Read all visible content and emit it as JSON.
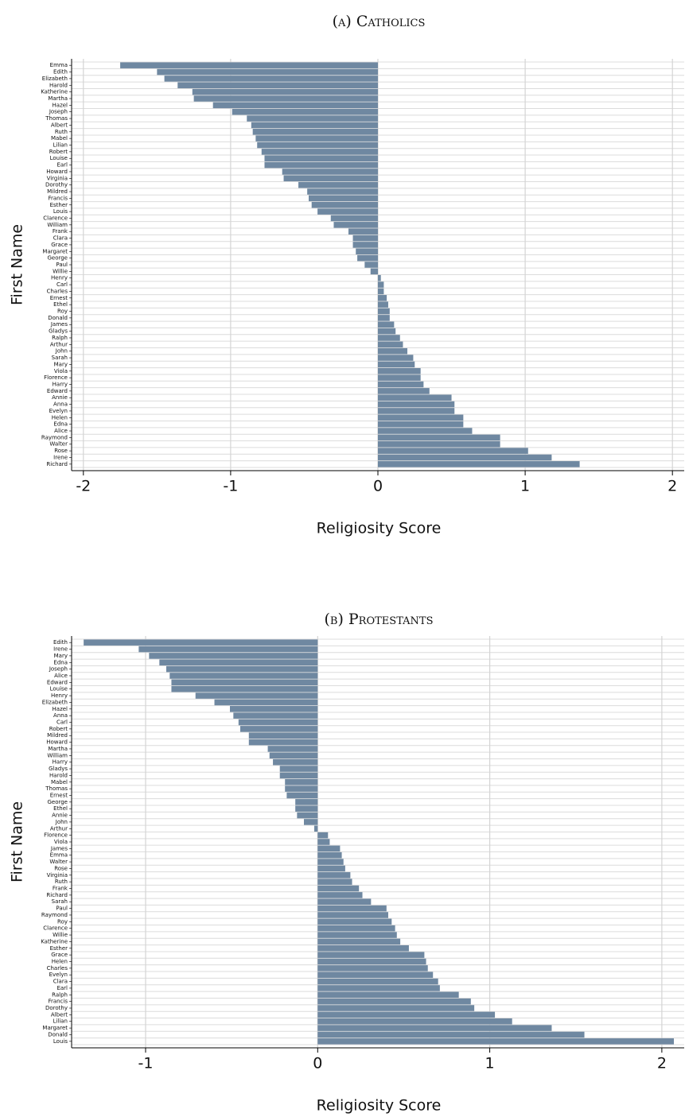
{
  "chart_data": [
    {
      "type": "bar",
      "orientation": "horizontal",
      "title": "(a) Catholics",
      "xlabel": "Religiosity Score",
      "ylabel": "First Name",
      "color": "#6f88a1",
      "grid": true,
      "xlim": [
        -2.08,
        2.08
      ],
      "xticks": [
        -2,
        -1,
        0,
        1,
        2
      ],
      "categories": [
        "Emma",
        "Edith",
        "Elizabeth",
        "Harold",
        "Katherine",
        "Martha",
        "Hazel",
        "Joseph",
        "Thomas",
        "Albert",
        "Ruth",
        "Mabel",
        "Lilian",
        "Robert",
        "Louise",
        "Earl",
        "Howard",
        "Virginia",
        "Dorothy",
        "Mildred",
        "Francis",
        "Esther",
        "Louis",
        "Clarence",
        "William",
        "Frank",
        "Clara",
        "Grace",
        "Margaret",
        "George",
        "Paul",
        "Willie",
        "Henry",
        "Carl",
        "Charles",
        "Ernest",
        "Ethel",
        "Roy",
        "Donald",
        "James",
        "Gladys",
        "Ralph",
        "Arthur",
        "John",
        "Sarah",
        "Mary",
        "Viola",
        "Florence",
        "Harry",
        "Edward",
        "Annie",
        "Anna",
        "Evelyn",
        "Helen",
        "Edna",
        "Alice",
        "Raymond",
        "Walter",
        "Rose",
        "Irene",
        "Richard"
      ],
      "values": [
        -1.75,
        -1.5,
        -1.45,
        -1.36,
        -1.26,
        -1.25,
        -1.12,
        -0.99,
        -0.89,
        -0.86,
        -0.85,
        -0.83,
        -0.82,
        -0.79,
        -0.77,
        -0.77,
        -0.65,
        -0.64,
        -0.54,
        -0.48,
        -0.47,
        -0.45,
        -0.41,
        -0.32,
        -0.3,
        -0.2,
        -0.17,
        -0.17,
        -0.15,
        -0.14,
        -0.09,
        -0.05,
        0.02,
        0.04,
        0.04,
        0.06,
        0.07,
        0.08,
        0.08,
        0.11,
        0.12,
        0.15,
        0.17,
        0.2,
        0.24,
        0.25,
        0.29,
        0.29,
        0.31,
        0.35,
        0.5,
        0.52,
        0.52,
        0.58,
        0.58,
        0.64,
        0.83,
        0.83,
        1.02,
        1.18,
        1.37
      ]
    },
    {
      "type": "bar",
      "orientation": "horizontal",
      "title": "(b) Protestants",
      "xlabel": "Religiosity Score",
      "ylabel": "First Name",
      "color": "#6f88a1",
      "grid": true,
      "xlim": [
        -1.43,
        2.13
      ],
      "xticks": [
        -1,
        0,
        1,
        2
      ],
      "categories": [
        "Edith",
        "Irene",
        "Mary",
        "Edna",
        "Joseph",
        "Alice",
        "Edward",
        "Louise",
        "Henry",
        "Elizabeth",
        "Hazel",
        "Anna",
        "Carl",
        "Robert",
        "Mildred",
        "Howard",
        "Martha",
        "William",
        "Harry",
        "Gladys",
        "Harold",
        "Mabel",
        "Thomas",
        "Ernest",
        "George",
        "Ethel",
        "Annie",
        "John",
        "Arthur",
        "Florence",
        "Viola",
        "James",
        "Emma",
        "Walter",
        "Rose",
        "Virginia",
        "Ruth",
        "Frank",
        "Richard",
        "Sarah",
        "Paul",
        "Raymond",
        "Roy",
        "Clarence",
        "Willie",
        "Katherine",
        "Esther",
        "Grace",
        "Helen",
        "Charles",
        "Evelyn",
        "Clara",
        "Earl",
        "Ralph",
        "Francis",
        "Dorothy",
        "Albert",
        "Lilian",
        "Margaret",
        "Donald",
        "Louis"
      ],
      "values": [
        -1.36,
        -1.04,
        -0.98,
        -0.92,
        -0.88,
        -0.86,
        -0.85,
        -0.85,
        -0.71,
        -0.6,
        -0.51,
        -0.49,
        -0.46,
        -0.45,
        -0.4,
        -0.4,
        -0.29,
        -0.28,
        -0.26,
        -0.22,
        -0.22,
        -0.19,
        -0.19,
        -0.18,
        -0.13,
        -0.13,
        -0.12,
        -0.08,
        -0.02,
        0.06,
        0.07,
        0.13,
        0.14,
        0.15,
        0.16,
        0.19,
        0.2,
        0.24,
        0.26,
        0.31,
        0.4,
        0.41,
        0.43,
        0.45,
        0.46,
        0.48,
        0.53,
        0.62,
        0.63,
        0.64,
        0.67,
        0.7,
        0.71,
        0.82,
        0.89,
        0.91,
        1.03,
        1.13,
        1.36,
        1.55,
        2.07
      ]
    }
  ]
}
